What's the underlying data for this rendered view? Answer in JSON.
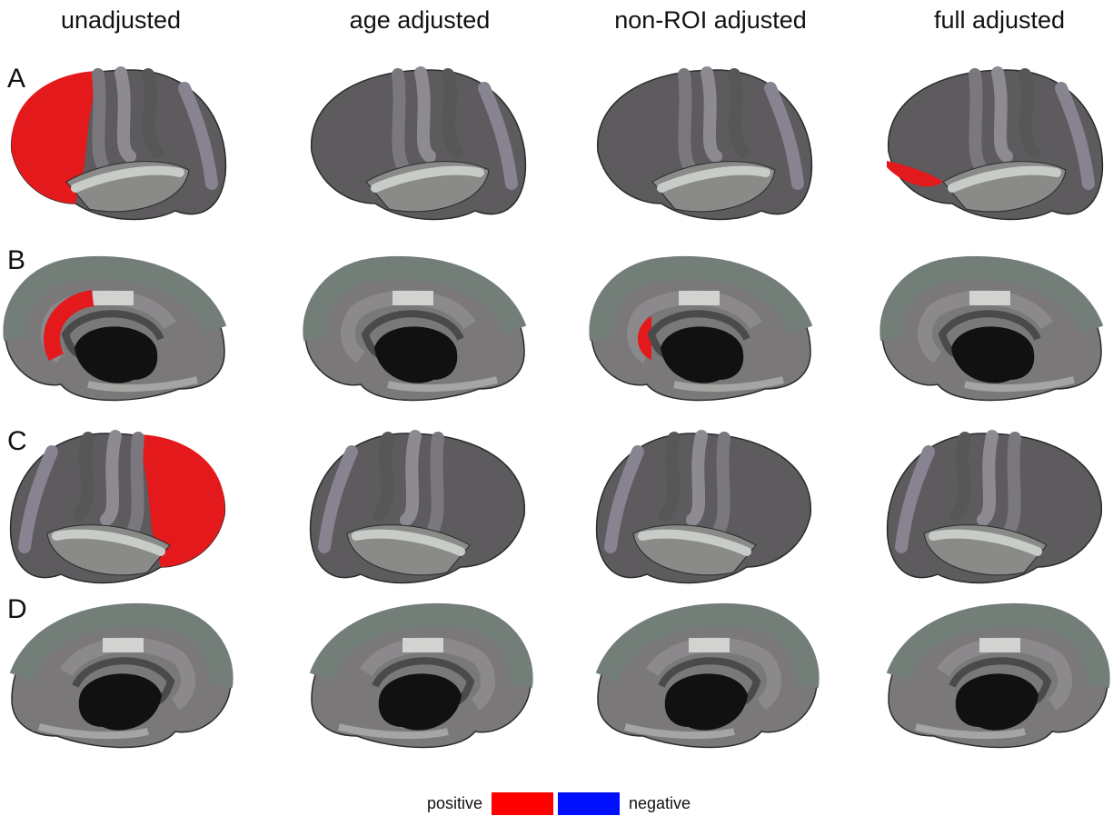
{
  "columns": [
    "unadjusted",
    "age adjusted",
    "non-ROI adjusted",
    "full adjusted"
  ],
  "rows": [
    "A",
    "B",
    "C",
    "D"
  ],
  "legend": {
    "positive": "positive",
    "negative": "negative"
  }
}
